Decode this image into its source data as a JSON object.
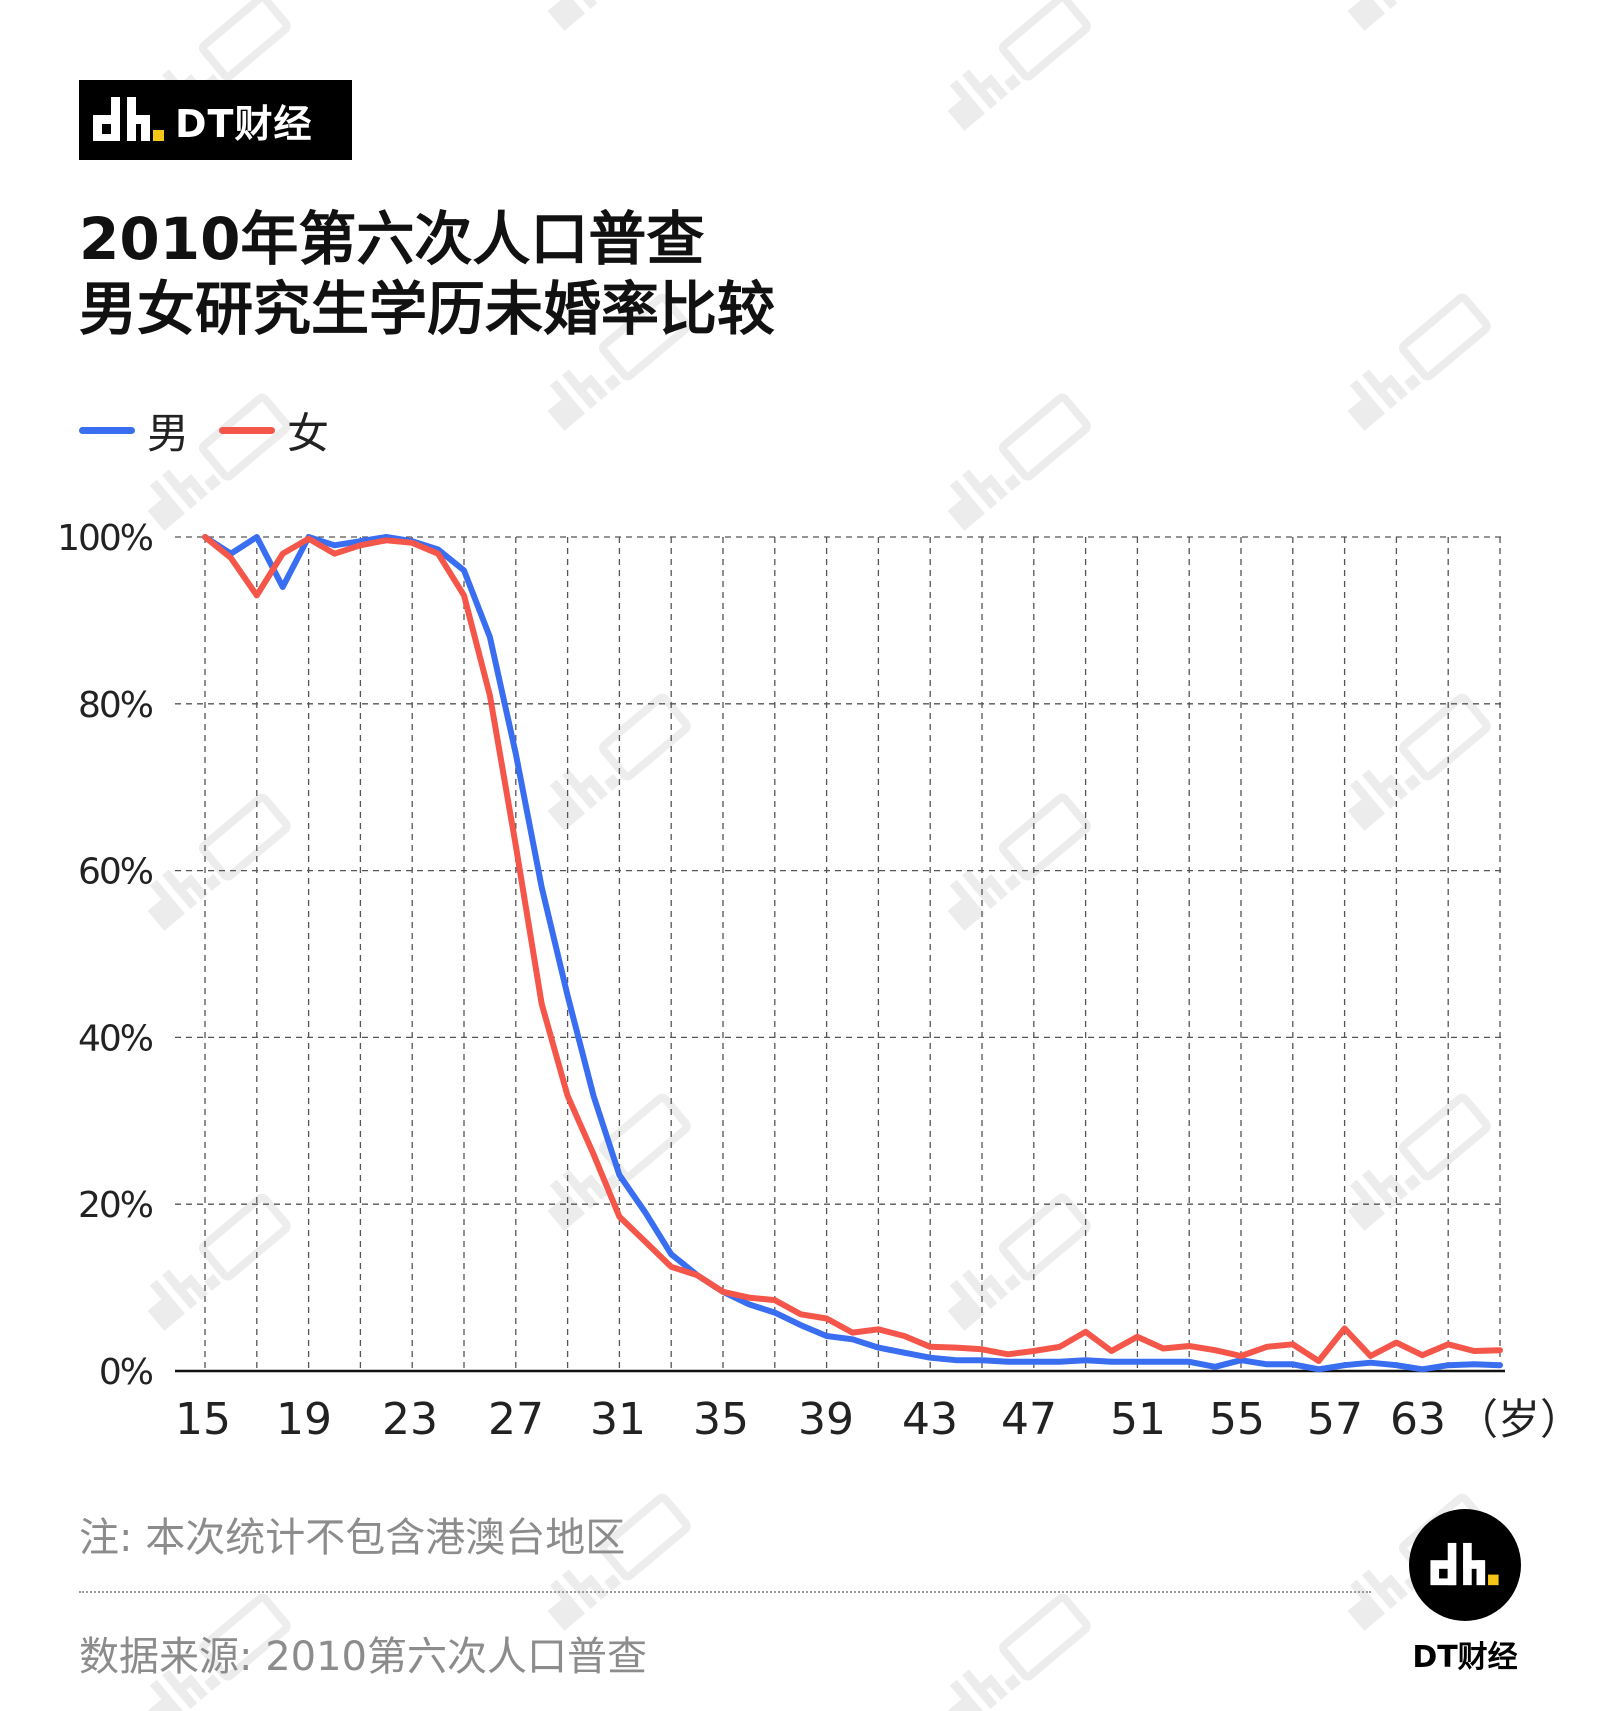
{
  "brand": {
    "name": "DT财经",
    "logo_color": "#000000",
    "logo_accent": "#F5C518"
  },
  "title": {
    "line1": "2010年第六次人口普查",
    "line2": "男女研究生学历未婚率比较"
  },
  "legend": {
    "placement": "top-left",
    "items": [
      {
        "label": "男",
        "color": "#3A6EF0"
      },
      {
        "label": "女",
        "color": "#F5564A"
      }
    ]
  },
  "chart_data": {
    "type": "line",
    "title": "2010年第六次人口普查 男女研究生学历未婚率比较",
    "xlabel": "（岁）",
    "ylabel": "",
    "xlim": [
      15,
      65
    ],
    "ylim": [
      0,
      100
    ],
    "grid": true,
    "x_ticks": [
      15,
      19,
      23,
      27,
      31,
      35,
      39,
      43,
      47,
      51,
      55,
      57,
      63
    ],
    "y_ticks": [
      "0%",
      "20%",
      "40%",
      "60%",
      "80%",
      "100%"
    ],
    "y_tick_values": [
      0,
      20,
      40,
      60,
      80,
      100
    ],
    "x": [
      15,
      16,
      17,
      18,
      19,
      20,
      21,
      22,
      23,
      24,
      25,
      26,
      27,
      28,
      29,
      30,
      31,
      32,
      33,
      34,
      35,
      36,
      37,
      38,
      39,
      40,
      41,
      42,
      43,
      44,
      45,
      46,
      47,
      48,
      49,
      50,
      51,
      52,
      53,
      54,
      55,
      56,
      57,
      58,
      59,
      60,
      61,
      62,
      63,
      64,
      65
    ],
    "series": [
      {
        "name": "男",
        "color": "#3A6EF0",
        "values": [
          100,
          98,
          100,
          94,
          100,
          99,
          99.5,
          100,
          99.5,
          98.5,
          96,
          88,
          74,
          58,
          45,
          33,
          23.5,
          19,
          14,
          11.5,
          9.5,
          8,
          7,
          5.5,
          4.2,
          3.8,
          2.8,
          2.2,
          1.6,
          1.3,
          1.3,
          1.1,
          1.1,
          1.1,
          1.3,
          1.1,
          1.1,
          1.1,
          1.1,
          0.5,
          1.3,
          0.8,
          0.8,
          0.2,
          0.7,
          1.0,
          0.7,
          0.2,
          0.7,
          0.8,
          0.7
        ]
      },
      {
        "name": "女",
        "color": "#F5564A",
        "values": [
          100,
          97.5,
          93,
          98,
          99.8,
          98,
          99,
          99.6,
          99.3,
          98,
          93,
          81,
          63,
          44,
          33,
          26,
          18.5,
          15.5,
          12.5,
          11.5,
          9.5,
          8.8,
          8.5,
          6.8,
          6.3,
          4.6,
          5,
          4.2,
          2.9,
          2.8,
          2.6,
          2,
          2.4,
          2.9,
          4.7,
          2.4,
          4.1,
          2.7,
          3,
          2.5,
          1.8,
          2.9,
          3.2,
          1.2,
          5.1,
          1.8,
          3.4,
          1.9,
          3.2,
          2.4,
          2.5
        ]
      }
    ]
  },
  "note": "注: 本次统计不包含港澳台地区",
  "source": "数据来源: 2010第六次人口普查"
}
